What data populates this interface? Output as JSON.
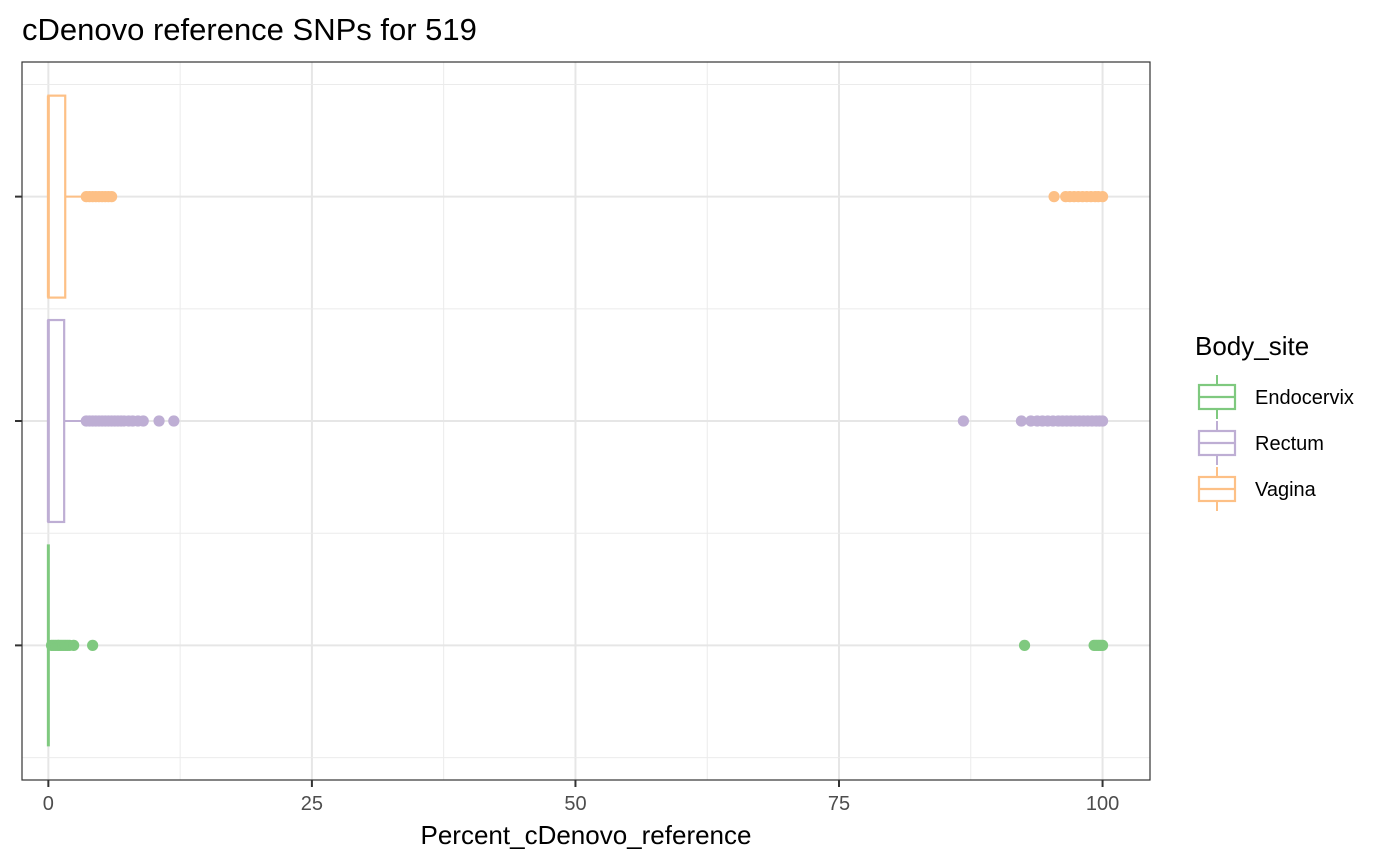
{
  "chart_data": {
    "type": "boxplot",
    "orientation": "horizontal",
    "title": "cDenovo reference SNPs for 519",
    "xlabel": "Percent_cDenovo_reference",
    "ylabel": "",
    "xlim": [
      -2.5,
      104.5
    ],
    "x_ticks": [
      0,
      25,
      50,
      75,
      100
    ],
    "x_tick_labels": [
      "0",
      "25",
      "50",
      "75",
      "100"
    ],
    "grid": true,
    "legend": {
      "title": "Body_site",
      "position": "right",
      "entries": [
        "Endocervix",
        "Rectum",
        "Vagina"
      ]
    },
    "series": [
      {
        "name": "Endocervix",
        "color": "#7fc97f",
        "box": {
          "min": 0,
          "q1": 0,
          "median": 0,
          "q3": 0,
          "max": 0.1
        },
        "outliers": [
          0.3,
          0.5,
          0.7,
          0.9,
          1.0,
          1.2,
          1.4,
          1.6,
          1.8,
          2.0,
          2.4,
          4.2,
          92.6,
          99.2,
          99.4,
          99.6,
          99.8,
          100
        ]
      },
      {
        "name": "Rectum",
        "color": "#beaed4",
        "box": {
          "min": 0,
          "q1": 0,
          "median": 0,
          "q3": 1.5,
          "max": 3.5
        },
        "outliers": [
          3.6,
          3.9,
          4.2,
          4.5,
          4.8,
          5.1,
          5.4,
          5.7,
          6.0,
          6.3,
          6.6,
          6.9,
          7.2,
          7.6,
          8.0,
          8.5,
          9.0,
          10.5,
          11.9,
          86.8,
          92.3,
          93.2,
          93.8,
          94.3,
          94.8,
          95.3,
          95.8,
          96.2,
          96.6,
          97.0,
          97.4,
          97.8,
          98.2,
          98.6,
          99.0,
          99.4,
          99.7,
          100
        ]
      },
      {
        "name": "Vagina",
        "color": "#fdc086",
        "box": {
          "min": 0,
          "q1": 0,
          "median": 0,
          "q3": 1.6,
          "max": 3.5
        },
        "outliers": [
          3.6,
          3.9,
          4.2,
          4.5,
          4.8,
          5.1,
          5.4,
          5.7,
          6.0,
          95.4,
          96.5,
          96.9,
          97.3,
          97.7,
          98.1,
          98.5,
          98.9,
          99.3,
          99.6,
          100
        ]
      }
    ]
  }
}
